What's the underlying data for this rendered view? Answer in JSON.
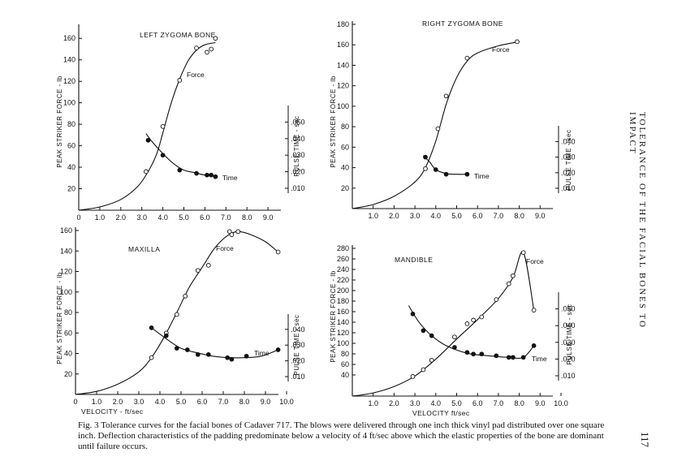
{
  "caption": "Fig. 3   Tolerance curves for the facial bones of Cadaver 717. The blows were delivered through one inch thick vinyl pad distributed over one square inch. Deflection characteristics of the padding predominate below a velocity of 4 ft/sec above which the elastic properties of the bone are dominant until failure occurs.",
  "running_head": "TOLERANCE OF THE FACIAL BONES TO IMPACT",
  "page_number": "117",
  "colors": {
    "ink": "#111111",
    "paper": "#ffffff"
  },
  "chart_data": [
    {
      "id": "left-zygoma",
      "type": "line",
      "title": "LEFT ZYGOMA BONE",
      "ylabel": "PEAK STRIKER FORCE - lb",
      "ylabel2": "PULSE TIME - sec",
      "xlabel": "",
      "xlim": [
        0,
        10
      ],
      "ylim": [
        0,
        170
      ],
      "y2lim": [
        0,
        0.05
      ],
      "xticks": [
        "0",
        "1.0",
        "2.0",
        "3.0",
        "4.0",
        "5.0",
        "6.0",
        "7.0",
        "8.0",
        "9.0"
      ],
      "yticks": [
        "20",
        "40",
        "60",
        "80",
        "100",
        "120",
        "140",
        "160"
      ],
      "y2ticks": [
        ".010",
        ".020",
        ".030",
        ".040",
        ".050"
      ],
      "series": [
        {
          "name": "Force",
          "marker": "open",
          "points": [
            [
              3.2,
              36
            ],
            [
              4.0,
              78
            ],
            [
              4.8,
              121
            ],
            [
              5.6,
              151
            ],
            [
              6.1,
              147
            ],
            [
              6.3,
              150
            ],
            [
              6.5,
              160
            ]
          ],
          "curve": [
            [
              0,
              0
            ],
            [
              1,
              3
            ],
            [
              2,
              10
            ],
            [
              2.8,
              22
            ],
            [
              3.3,
              36
            ],
            [
              3.7,
              52
            ],
            [
              4.0,
              72
            ],
            [
              4.4,
              100
            ],
            [
              4.8,
              122
            ],
            [
              5.2,
              139
            ],
            [
              5.6,
              149
            ],
            [
              6.0,
              154
            ],
            [
              6.5,
              156
            ]
          ]
        },
        {
          "name": "Time",
          "marker": "filled",
          "points": [
            [
              3.3,
              0.039
            ],
            [
              4.0,
              0.03
            ],
            [
              4.8,
              0.021
            ],
            [
              5.6,
              0.019
            ],
            [
              6.1,
              0.018
            ],
            [
              6.3,
              0.018
            ],
            [
              6.5,
              0.017
            ]
          ],
          "curve": [
            [
              3.2,
              0.043
            ],
            [
              3.5,
              0.038
            ],
            [
              4.0,
              0.031
            ],
            [
              4.5,
              0.025
            ],
            [
              5.0,
              0.021
            ],
            [
              5.5,
              0.0195
            ],
            [
              6.0,
              0.018
            ],
            [
              6.6,
              0.0175
            ]
          ]
        }
      ]
    },
    {
      "id": "right-zygoma",
      "type": "line",
      "title": "RIGHT ZYGOMA BONE",
      "ylabel": "PEAK STRIKER FORCE - lb",
      "ylabel2": "PULSE TIME - sec",
      "xlabel": "",
      "xlim": [
        0,
        10
      ],
      "ylim": [
        0,
        180
      ],
      "y2lim": [
        0,
        0.05
      ],
      "xticks": [
        "1.0",
        "2.0",
        "3.0",
        "4.0",
        "5.0",
        "6.0",
        "7.0",
        "8.0",
        "9.0"
      ],
      "yticks": [
        "20",
        "40",
        "60",
        "80",
        "100",
        "120",
        "140",
        "160",
        "180"
      ],
      "y2ticks": [
        ".010",
        ".020",
        ".030",
        ".040"
      ],
      "series": [
        {
          "name": "Force",
          "marker": "open",
          "points": [
            [
              3.5,
              39
            ],
            [
              4.1,
              78
            ],
            [
              4.5,
              110
            ],
            [
              5.5,
              147
            ],
            [
              7.9,
              163
            ]
          ],
          "curve": [
            [
              0,
              0
            ],
            [
              1,
              4
            ],
            [
              2,
              12
            ],
            [
              3,
              26
            ],
            [
              3.5,
              40
            ],
            [
              4.0,
              66
            ],
            [
              4.5,
              102
            ],
            [
              5.0,
              128
            ],
            [
              5.5,
              144
            ],
            [
              6.0,
              152
            ],
            [
              7.0,
              159
            ],
            [
              8.0,
              163
            ]
          ]
        },
        {
          "name": "Time",
          "marker": "filled",
          "points": [
            [
              3.5,
              0.03
            ],
            [
              4.0,
              0.022
            ],
            [
              4.5,
              0.019
            ],
            [
              5.5,
              0.019
            ]
          ],
          "curve": [
            [
              3.4,
              0.031
            ],
            [
              3.7,
              0.027
            ],
            [
              4.0,
              0.022
            ],
            [
              4.5,
              0.0195
            ],
            [
              5.0,
              0.019
            ],
            [
              5.6,
              0.019
            ]
          ]
        }
      ]
    },
    {
      "id": "maxilla",
      "type": "line",
      "title": "MAXILLA",
      "ylabel": "PEAK STRIKER FORCE - lb",
      "ylabel2": "PULSE TIME - sec",
      "xlabel": "VELOCITY - ft/sec",
      "xlim": [
        0,
        10
      ],
      "ylim": [
        0,
        160
      ],
      "y2lim": [
        0,
        0.05
      ],
      "xticks": [
        "0",
        "1.0",
        "2.0",
        "3.0",
        "4.0",
        "5.0",
        "6.0",
        "7.0",
        "8.0",
        "9.0",
        "10.0"
      ],
      "yticks": [
        "20",
        "40",
        "60",
        "80",
        "100",
        "120",
        "140",
        "160"
      ],
      "y2ticks": [
        ".010",
        ".020",
        ".030",
        ".040"
      ],
      "series": [
        {
          "name": "Force",
          "marker": "open",
          "points": [
            [
              3.6,
              36
            ],
            [
              4.3,
              60
            ],
            [
              4.8,
              78
            ],
            [
              5.2,
              96
            ],
            [
              5.8,
              121
            ],
            [
              6.3,
              126
            ],
            [
              7.3,
              159
            ],
            [
              7.4,
              156
            ],
            [
              7.7,
              159
            ],
            [
              9.6,
              139
            ]
          ],
          "curve": [
            [
              0,
              0
            ],
            [
              1,
              3
            ],
            [
              2,
              10
            ],
            [
              3,
              22
            ],
            [
              3.6,
              36
            ],
            [
              4.2,
              56
            ],
            [
              4.8,
              80
            ],
            [
              5.4,
              105
            ],
            [
              6.0,
              124
            ],
            [
              6.6,
              143
            ],
            [
              7.2,
              155
            ],
            [
              7.7,
              159
            ],
            [
              8.3,
              156
            ],
            [
              9.0,
              149
            ],
            [
              9.6,
              139
            ]
          ]
        },
        {
          "name": "Time",
          "marker": "filled",
          "points": [
            [
              3.6,
              0.041
            ],
            [
              4.3,
              0.036
            ],
            [
              4.8,
              0.028
            ],
            [
              5.3,
              0.027
            ],
            [
              5.8,
              0.024
            ],
            [
              6.3,
              0.024
            ],
            [
              7.2,
              0.022
            ],
            [
              7.4,
              0.021
            ],
            [
              8.1,
              0.023
            ],
            [
              9.6,
              0.027
            ]
          ],
          "curve": [
            [
              3.6,
              0.041
            ],
            [
              4.3,
              0.034
            ],
            [
              5.0,
              0.028
            ],
            [
              5.8,
              0.025
            ],
            [
              6.5,
              0.023
            ],
            [
              7.3,
              0.022
            ],
            [
              8.0,
              0.022
            ],
            [
              8.8,
              0.023
            ],
            [
              9.6,
              0.027
            ]
          ]
        }
      ]
    },
    {
      "id": "mandible",
      "type": "line",
      "title": "MANDIBLE",
      "ylabel": "PEAK STRIKER FORCE - lb",
      "ylabel2": "PULSE TIME - sec",
      "xlabel": "VELOCITY ft/sec",
      "xlim": [
        0,
        10
      ],
      "ylim": [
        0,
        280
      ],
      "y2lim": [
        0,
        0.05
      ],
      "xticks": [
        "1.0",
        "2.0",
        "3.0",
        "4.0",
        "5.0",
        "6.0",
        "7.0",
        "8.0",
        "9.0",
        "10.0"
      ],
      "yticks": [
        "40",
        "60",
        "80",
        "100",
        "120",
        "140",
        "160",
        "180",
        "200",
        "220",
        "240",
        "260",
        "280"
      ],
      "y2ticks": [
        ".010",
        ".020",
        ".030",
        ".040",
        ".050"
      ],
      "series": [
        {
          "name": "Force",
          "marker": "open",
          "points": [
            [
              2.9,
              37
            ],
            [
              3.4,
              50
            ],
            [
              3.8,
              68
            ],
            [
              4.9,
              112
            ],
            [
              5.5,
              137
            ],
            [
              5.8,
              144
            ],
            [
              6.2,
              150
            ],
            [
              6.9,
              183
            ],
            [
              7.5,
              213
            ],
            [
              7.7,
              228
            ],
            [
              8.2,
              272
            ],
            [
              8.7,
              163
            ]
          ],
          "curve": [
            [
              0,
              0
            ],
            [
              1,
              6
            ],
            [
              2,
              18
            ],
            [
              3,
              38
            ],
            [
              4,
              70
            ],
            [
              5,
              108
            ],
            [
              6,
              145
            ],
            [
              7,
              185
            ],
            [
              7.7,
              225
            ],
            [
              8.2,
              272
            ],
            [
              8.7,
              163
            ]
          ]
        },
        {
          "name": "Time",
          "marker": "filled",
          "points": [
            [
              2.9,
              0.047
            ],
            [
              3.4,
              0.037
            ],
            [
              3.8,
              0.034
            ],
            [
              4.9,
              0.027
            ],
            [
              5.5,
              0.024
            ],
            [
              5.8,
              0.023
            ],
            [
              6.2,
              0.023
            ],
            [
              6.9,
              0.022
            ],
            [
              7.5,
              0.021
            ],
            [
              7.7,
              0.021
            ],
            [
              8.2,
              0.021
            ],
            [
              8.7,
              0.028
            ]
          ],
          "curve": [
            [
              2.7,
              0.052
            ],
            [
              3.2,
              0.042
            ],
            [
              3.8,
              0.034
            ],
            [
              4.5,
              0.028
            ],
            [
              5.5,
              0.0235
            ],
            [
              6.5,
              0.022
            ],
            [
              7.5,
              0.021
            ],
            [
              8.2,
              0.021
            ],
            [
              8.7,
              0.028
            ]
          ]
        }
      ]
    }
  ]
}
